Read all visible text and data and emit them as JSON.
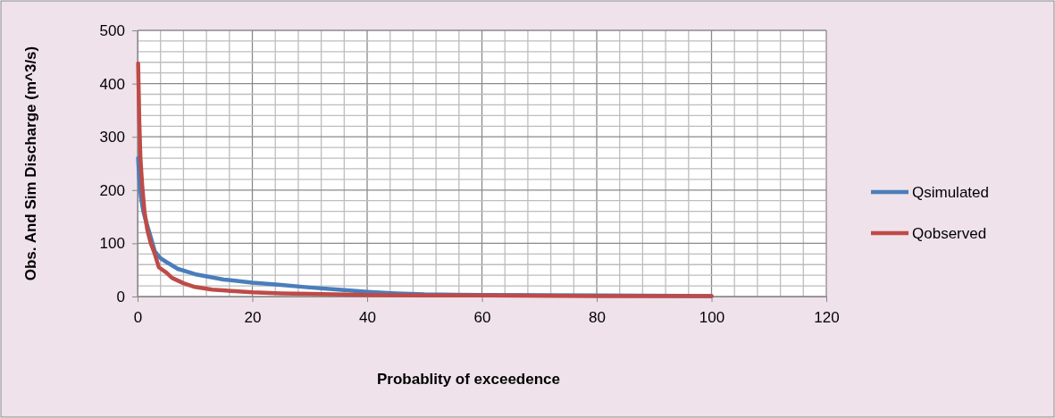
{
  "chart_data": {
    "type": "line",
    "xlabel": "Probablity of exceedence",
    "ylabel": "Obs. And Sim Discharge (m^3/s)",
    "xlim": [
      0,
      120
    ],
    "xticks": [
      0,
      20,
      40,
      60,
      80,
      100,
      120
    ],
    "ylim": [
      0,
      500
    ],
    "yticks": [
      0,
      100,
      200,
      300,
      400,
      500
    ],
    "grid": true,
    "legend": "right",
    "marker": "none",
    "line_style": "solid",
    "series": [
      {
        "name": "Qsimulated",
        "color": "#4a7ebb",
        "x": [
          0.1,
          0.3,
          0.6,
          1,
          1.5,
          2.2,
          3,
          4,
          5,
          7,
          10,
          15,
          20,
          25,
          30,
          35,
          40,
          45,
          50,
          60,
          80,
          100
        ],
        "values": [
          260,
          220,
          185,
          160,
          140,
          115,
          85,
          72,
          65,
          52,
          42,
          32,
          26,
          22,
          17,
          13,
          9,
          6,
          4,
          3,
          2,
          1
        ]
      },
      {
        "name": "Qobserved",
        "color": "#be4b48",
        "x": [
          0.1,
          0.3,
          0.5,
          0.8,
          1.2,
          1.7,
          2.3,
          3,
          3.7,
          5,
          6,
          8,
          10,
          13,
          17,
          20,
          25,
          30,
          40,
          50,
          60,
          80,
          100
        ],
        "values": [
          438,
          330,
          260,
          210,
          160,
          125,
          100,
          80,
          55,
          45,
          35,
          25,
          18,
          13,
          10,
          8,
          6,
          5,
          3,
          2,
          2,
          1,
          1
        ]
      }
    ]
  }
}
